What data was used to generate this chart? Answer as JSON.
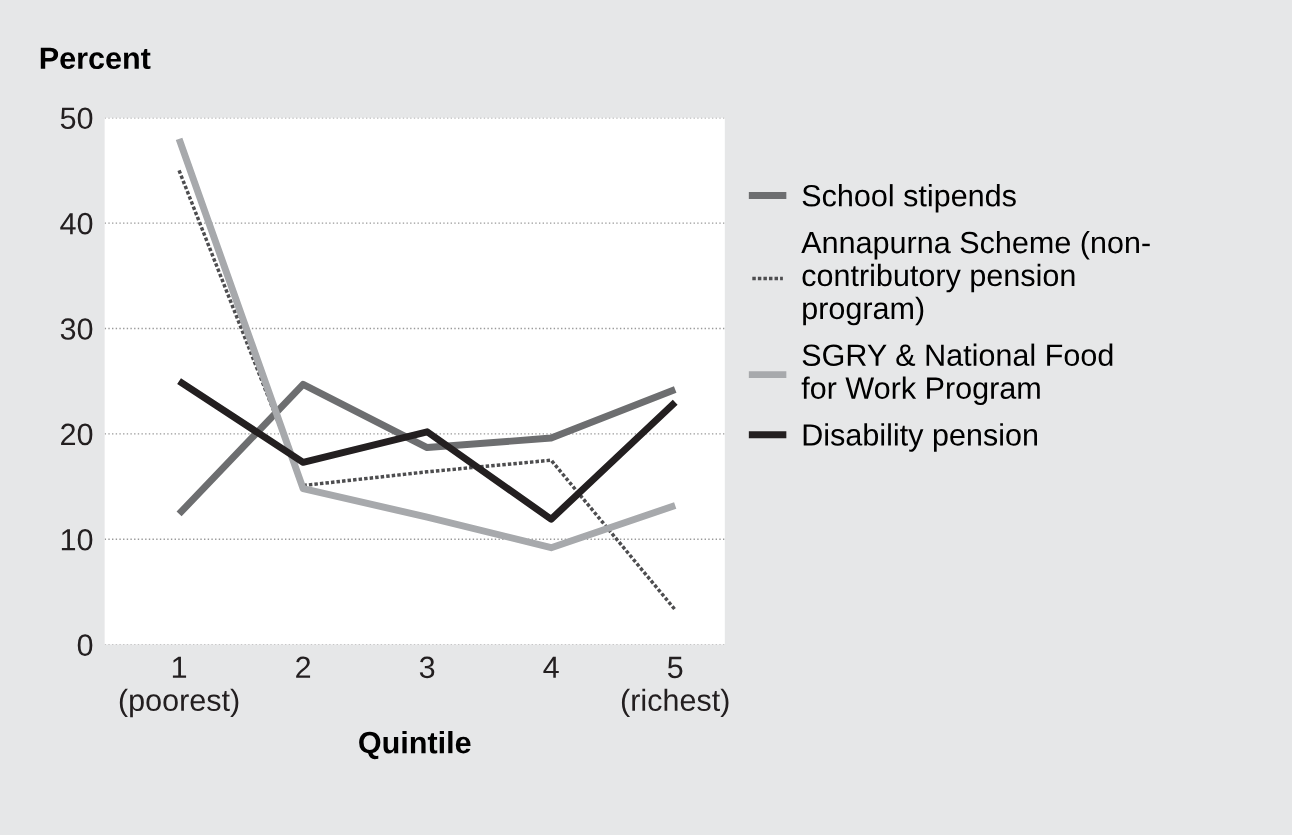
{
  "chart_data": {
    "type": "line",
    "ylabel": "Percent",
    "xlabel": "Quintile",
    "categories": [
      "1\n(poorest)",
      "2",
      "3",
      "4",
      "5\n(richest)"
    ],
    "series": [
      {
        "name": "School stipends",
        "color": "#6d6e70",
        "values": [
          12.4,
          24.7,
          18.7,
          19.6,
          24.2
        ]
      },
      {
        "name": "Annapurna Scheme (non-\ncontributory pension\nprogram)",
        "color": "#4d4d4f",
        "line_style": "dotted",
        "values": [
          45,
          15.1,
          16.4,
          17.5,
          3.3
        ]
      },
      {
        "name": "SGRY & National Food\nfor Work Program",
        "color": "#a7a9ac",
        "values": [
          48,
          14.8,
          12.1,
          9.2,
          13.2
        ]
      },
      {
        "name": "Disability pension",
        "color": "#231f20",
        "values": [
          25,
          17.3,
          20.2,
          11.9,
          23
        ]
      }
    ],
    "ylim": [
      0,
      50
    ],
    "yticks": [
      0,
      10,
      20,
      30,
      40,
      50
    ],
    "grid": "y",
    "legend": "right",
    "marker": "none",
    "line_style": "solid"
  }
}
